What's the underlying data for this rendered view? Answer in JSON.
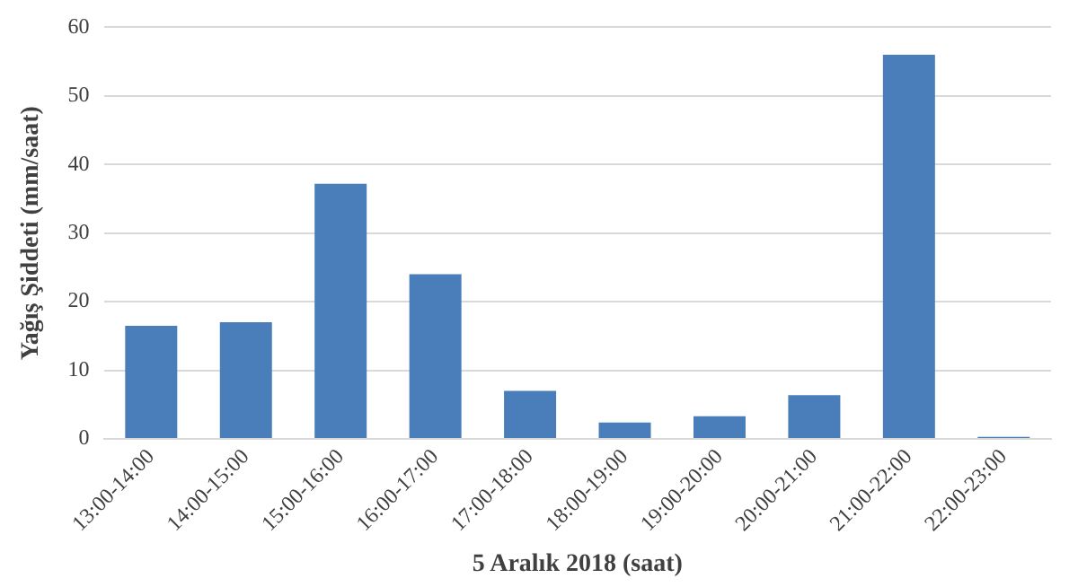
{
  "chart_data": {
    "type": "bar",
    "xlabel": "5 Aralık 2018 (saat)",
    "ylabel": "Yağış Şiddeti (mm/saat)",
    "categories": [
      "13:00-14:00",
      "14:00-15:00",
      "15:00-16:00",
      "16:00-17:00",
      "17:00-18:00",
      "18:00-19:00",
      "19:00-20:00",
      "20:00-21:00",
      "21:00-22:00",
      "22:00-23:00"
    ],
    "values": [
      16.5,
      17.0,
      37.2,
      24.0,
      7.0,
      2.4,
      3.3,
      6.4,
      56.0,
      0.3
    ],
    "color": "#4a7ebb",
    "ylim": [
      0,
      60
    ],
    "yticks": [
      0,
      10,
      20,
      30,
      40,
      50,
      60
    ],
    "grid": "y"
  }
}
